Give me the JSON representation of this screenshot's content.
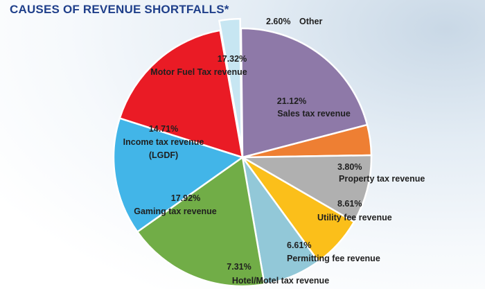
{
  "chart_data": {
    "type": "pie",
    "title": "CAUSES OF REVENUE SHORTFALLS*",
    "slices": [
      {
        "label": "Other",
        "value": 2.6,
        "value_text": "2.60%",
        "color": "#c7e6f2"
      },
      {
        "label": "Sales tax revenue",
        "value": 21.12,
        "value_text": "21.12%",
        "color": "#8e79a8"
      },
      {
        "label": "Property tax revenue",
        "value": 3.8,
        "value_text": "3.80%",
        "color": "#ee7f33"
      },
      {
        "label": "Utility fee revenue",
        "value": 8.61,
        "value_text": "8.61%",
        "color": "#b0b0b0"
      },
      {
        "label": "Permitting fee revenue",
        "value": 6.61,
        "value_text": "6.61%",
        "color": "#fbbf1a"
      },
      {
        "label": "Hotel/Motel tax revenue",
        "value": 7.31,
        "value_text": "7.31%",
        "color": "#92c8d8"
      },
      {
        "label": "Gaming tax revenue",
        "value": 17.92,
        "value_text": "17.92%",
        "color": "#71ad47"
      },
      {
        "label": "Income tax revenue (LGDF)",
        "value": 14.71,
        "value_text": "14.71%",
        "color": "#42b5e8"
      },
      {
        "label": "Motor Fuel Tax revenue",
        "value": 17.32,
        "value_text": "17.32%",
        "color": "#ea1b25"
      }
    ]
  }
}
